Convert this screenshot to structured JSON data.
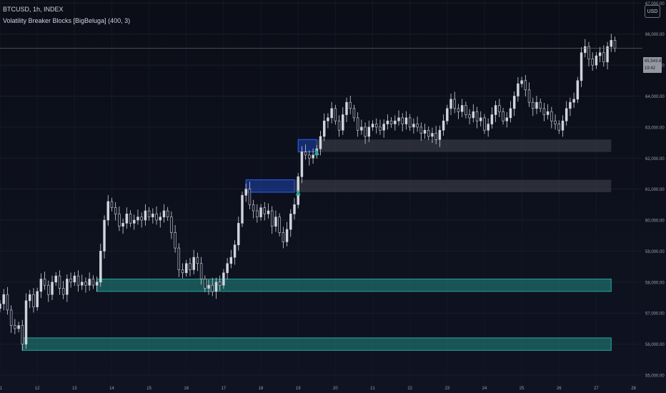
{
  "header": {
    "symbol": "BTCUSD, 1h, INDEX",
    "indicator": "Volatility Breaker Blocks [BigBeluga] (400, 3)"
  },
  "currency_button": "USD",
  "last_price": {
    "value": "65,543.81",
    "countdown": "19:42"
  },
  "colors": {
    "candle": "#d1d4dc",
    "bull_zone": "#26a69a",
    "bear_zone": "#2962ff",
    "neutral_zone": "#434651",
    "axis_text": "#9ba0ab"
  },
  "chart_data": {
    "type": "candlestick",
    "xlabel": "",
    "ylabel": "",
    "x_ticks": [
      "11",
      "12",
      "13",
      "14",
      "15",
      "16",
      "17",
      "18",
      "19",
      "20",
      "21",
      "22",
      "23",
      "24",
      "25",
      "26",
      "27",
      "28"
    ],
    "y_ticks": [
      "55,000.00",
      "56,000.00",
      "57,000.00",
      "58,000.00",
      "59,000.00",
      "60,000.00",
      "61,000.00",
      "62,000.00",
      "63,000.00",
      "64,000.00",
      "65,000.00",
      "66,000.00",
      "67,000.00"
    ],
    "ylim": [
      54700,
      67100
    ],
    "xlim": [
      11.0,
      28.2
    ],
    "series": [
      {
        "values": [
          [
            11.0,
            57.3
          ],
          [
            11.1,
            57.6
          ],
          [
            11.2,
            57.1
          ],
          [
            11.3,
            56.6
          ],
          [
            11.4,
            56.5
          ],
          [
            11.5,
            56.6
          ],
          [
            11.6,
            56.0
          ],
          [
            11.7,
            57.4
          ],
          [
            11.8,
            57.6
          ],
          [
            11.9,
            57.2
          ],
          [
            12.0,
            57.7
          ],
          [
            12.1,
            58.1
          ],
          [
            12.2,
            57.9
          ],
          [
            12.3,
            57.6
          ],
          [
            12.4,
            58.0
          ],
          [
            12.5,
            58.2
          ],
          [
            12.6,
            57.8
          ],
          [
            12.7,
            57.6
          ],
          [
            12.8,
            58.1
          ],
          [
            12.9,
            58.0
          ],
          [
            13.0,
            58.2
          ],
          [
            13.1,
            57.9
          ],
          [
            13.2,
            58.0
          ],
          [
            13.3,
            57.9
          ],
          [
            13.4,
            58.1
          ],
          [
            13.5,
            57.9
          ],
          [
            13.6,
            58.0
          ],
          [
            13.7,
            59.0
          ],
          [
            13.8,
            60.0
          ],
          [
            13.9,
            60.6
          ],
          [
            14.0,
            60.4
          ],
          [
            14.1,
            60.2
          ],
          [
            14.2,
            59.8
          ],
          [
            14.3,
            59.9
          ],
          [
            14.4,
            60.2
          ],
          [
            14.5,
            59.9
          ],
          [
            14.6,
            60.0
          ],
          [
            14.7,
            60.1
          ],
          [
            14.8,
            60.0
          ],
          [
            14.9,
            60.3
          ],
          [
            15.0,
            60.1
          ],
          [
            15.1,
            60.2
          ],
          [
            15.2,
            60.0
          ],
          [
            15.3,
            60.1
          ],
          [
            15.4,
            60.3
          ],
          [
            15.5,
            60.1
          ],
          [
            15.6,
            59.6
          ],
          [
            15.7,
            59.1
          ],
          [
            15.8,
            58.4
          ],
          [
            15.9,
            58.3
          ],
          [
            16.0,
            58.6
          ],
          [
            16.1,
            58.4
          ],
          [
            16.2,
            58.8
          ],
          [
            16.3,
            58.6
          ],
          [
            16.4,
            58.1
          ],
          [
            16.5,
            57.8
          ],
          [
            16.6,
            57.9
          ],
          [
            16.7,
            57.7
          ],
          [
            16.8,
            58.0
          ],
          [
            16.9,
            57.9
          ],
          [
            17.0,
            58.3
          ],
          [
            17.1,
            58.6
          ],
          [
            17.2,
            58.8
          ],
          [
            17.3,
            59.2
          ],
          [
            17.4,
            59.9
          ],
          [
            17.5,
            60.8
          ],
          [
            17.6,
            61.0
          ],
          [
            17.7,
            60.5
          ],
          [
            17.8,
            60.3
          ],
          [
            17.9,
            60.1
          ],
          [
            18.0,
            60.4
          ],
          [
            18.1,
            60.2
          ],
          [
            18.2,
            60.3
          ],
          [
            18.3,
            59.8
          ],
          [
            18.4,
            60.1
          ],
          [
            18.5,
            59.6
          ],
          [
            18.6,
            59.3
          ],
          [
            18.7,
            59.7
          ],
          [
            18.8,
            60.2
          ],
          [
            18.9,
            60.5
          ],
          [
            19.0,
            61.4
          ],
          [
            19.1,
            62.2
          ],
          [
            19.2,
            62.1
          ],
          [
            19.3,
            62.0
          ],
          [
            19.4,
            62.1
          ],
          [
            19.5,
            62.3
          ],
          [
            19.6,
            62.7
          ],
          [
            19.7,
            63.2
          ],
          [
            19.8,
            63.3
          ],
          [
            19.9,
            63.6
          ],
          [
            20.0,
            63.2
          ],
          [
            20.1,
            62.9
          ],
          [
            20.2,
            63.4
          ],
          [
            20.3,
            63.8
          ],
          [
            20.4,
            63.6
          ],
          [
            20.5,
            63.3
          ],
          [
            20.6,
            62.9
          ],
          [
            20.7,
            63.0
          ],
          [
            20.8,
            62.7
          ],
          [
            20.9,
            63.0
          ],
          [
            21.0,
            63.1
          ],
          [
            21.1,
            63.0
          ],
          [
            21.2,
            62.9
          ],
          [
            21.3,
            63.1
          ],
          [
            21.4,
            63.2
          ],
          [
            21.5,
            63.1
          ],
          [
            21.6,
            63.2
          ],
          [
            21.7,
            63.3
          ],
          [
            21.8,
            63.1
          ],
          [
            21.9,
            63.3
          ],
          [
            22.0,
            63.0
          ],
          [
            22.1,
            63.1
          ],
          [
            22.2,
            63.0
          ],
          [
            22.3,
            62.8
          ],
          [
            22.4,
            62.9
          ],
          [
            22.5,
            62.7
          ],
          [
            22.6,
            62.8
          ],
          [
            22.7,
            62.6
          ],
          [
            22.8,
            62.9
          ],
          [
            22.9,
            63.2
          ],
          [
            23.0,
            63.6
          ],
          [
            23.1,
            63.9
          ],
          [
            23.2,
            63.6
          ],
          [
            23.3,
            63.5
          ],
          [
            23.4,
            63.7
          ],
          [
            23.5,
            63.4
          ],
          [
            23.6,
            63.3
          ],
          [
            23.7,
            63.5
          ],
          [
            23.8,
            63.2
          ],
          [
            23.9,
            63.3
          ],
          [
            24.0,
            62.9
          ],
          [
            24.1,
            63.1
          ],
          [
            24.2,
            63.4
          ],
          [
            24.3,
            63.7
          ],
          [
            24.4,
            63.5
          ],
          [
            24.5,
            63.2
          ],
          [
            24.6,
            63.3
          ],
          [
            24.7,
            63.6
          ],
          [
            24.8,
            64.0
          ],
          [
            24.9,
            64.4
          ],
          [
            25.0,
            64.5
          ],
          [
            25.1,
            64.2
          ],
          [
            25.2,
            63.8
          ],
          [
            25.3,
            63.6
          ],
          [
            25.4,
            63.8
          ],
          [
            25.5,
            63.6
          ],
          [
            25.6,
            63.4
          ],
          [
            25.7,
            63.5
          ],
          [
            25.8,
            63.2
          ],
          [
            25.9,
            63.1
          ],
          [
            26.0,
            62.9
          ],
          [
            26.1,
            63.2
          ],
          [
            26.2,
            63.6
          ],
          [
            26.3,
            63.8
          ],
          [
            26.4,
            63.9
          ],
          [
            26.5,
            64.5
          ],
          [
            26.6,
            65.4
          ],
          [
            26.7,
            65.6
          ],
          [
            26.8,
            65.2
          ],
          [
            26.9,
            65.0
          ],
          [
            27.0,
            65.3
          ],
          [
            27.1,
            65.4
          ],
          [
            27.2,
            65.1
          ],
          [
            27.3,
            65.6
          ],
          [
            27.4,
            65.8
          ],
          [
            27.5,
            65.54
          ]
        ]
      }
    ],
    "zones": [
      {
        "type": "bull",
        "y_low": 55800,
        "y_high": 56200,
        "x_start": 11.6,
        "x_end": 27.4
      },
      {
        "type": "bull",
        "y_low": 57700,
        "y_high": 58100,
        "x_start": 13.6,
        "x_end": 27.4
      },
      {
        "type": "bear",
        "y_low": 60900,
        "y_high": 61300,
        "x_start": 17.6,
        "x_end": 18.9
      },
      {
        "type": "neutral",
        "y_low": 60900,
        "y_high": 61300,
        "x_start": 18.9,
        "x_end": 27.4
      },
      {
        "type": "bear",
        "y_low": 62200,
        "y_high": 62600,
        "x_start": 19.0,
        "x_end": 19.5
      },
      {
        "type": "neutral",
        "y_low": 62200,
        "y_high": 62600,
        "x_start": 19.5,
        "x_end": 27.4
      }
    ],
    "markers": [
      {
        "x": 19.0,
        "y": 60800
      },
      {
        "x": 19.5,
        "y": 62100
      }
    ],
    "last_price_line": 65543.81
  }
}
